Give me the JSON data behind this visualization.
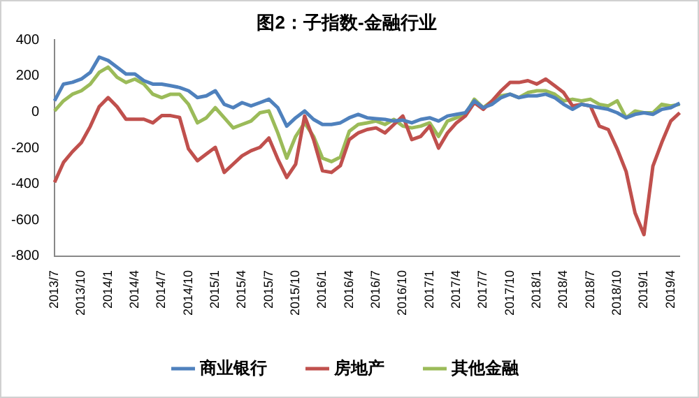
{
  "chart_data": {
    "type": "line",
    "title": "图2：子指数-金融行业",
    "categories": [
      "2013/7",
      null,
      null,
      "2013/10",
      null,
      null,
      "2014/1",
      null,
      null,
      "2014/4",
      null,
      null,
      "2014/7",
      null,
      null,
      "2014/10",
      null,
      null,
      "2015/1",
      null,
      null,
      "2015/4",
      null,
      null,
      "2015/7",
      null,
      null,
      "2015/10",
      null,
      null,
      "2016/1",
      null,
      null,
      "2016/4",
      null,
      null,
      "2016/7",
      null,
      null,
      "2016/10",
      null,
      null,
      "2017/1",
      null,
      null,
      "2017/4",
      null,
      null,
      "2017/7",
      null,
      null,
      "2017/10",
      null,
      null,
      "2018/1",
      null,
      null,
      "2018/4",
      null,
      null,
      "2018/7",
      null,
      null,
      "2018/10",
      null,
      null,
      "2019/1",
      null,
      null,
      "2019/4",
      null
    ],
    "series": [
      {
        "name": "商业银行",
        "color": "#4f81bd",
        "values": [
          62,
          155,
          165,
          183,
          220,
          305,
          286,
          249,
          211,
          211,
          174,
          155,
          155,
          146,
          136,
          118,
          80,
          90,
          118,
          43,
          24,
          52,
          34,
          52,
          71,
          24,
          -78,
          -32,
          6,
          -41,
          -69,
          -69,
          -60,
          -32,
          -13,
          -32,
          -37,
          -41,
          -50,
          -45,
          -60,
          -41,
          -32,
          -50,
          -22,
          -13,
          -4,
          62,
          24,
          43,
          80,
          99,
          80,
          90,
          90,
          99,
          80,
          43,
          15,
          43,
          34,
          24,
          15,
          -4,
          -32,
          -13,
          -4,
          -13,
          15,
          24,
          49
        ]
      },
      {
        "name": "房地产",
        "color": "#c0504d",
        "values": [
          -390,
          -280,
          -220,
          -170,
          -80,
          30,
          80,
          30,
          -40,
          -40,
          -40,
          -60,
          -20,
          -20,
          -30,
          -205,
          -270,
          -233,
          -196,
          -335,
          -289,
          -243,
          -215,
          -196,
          -144,
          -261,
          -363,
          -289,
          -22,
          -153,
          -326,
          -335,
          -298,
          -153,
          -116,
          -97,
          -88,
          -116,
          -69,
          -22,
          -153,
          -135,
          -78,
          -200,
          -116,
          -60,
          -22,
          52,
          15,
          62,
          118,
          164,
          164,
          174,
          155,
          183,
          146,
          108,
          34,
          43,
          34,
          -78,
          -97,
          -205,
          -330,
          -560,
          -680,
          -300,
          -168,
          -50,
          -4
        ]
      },
      {
        "name": "其他金融",
        "color": "#9bbb59",
        "values": [
          6,
          62,
          99,
          118,
          155,
          220,
          249,
          193,
          164,
          183,
          155,
          99,
          80,
          99,
          99,
          43,
          -60,
          -32,
          24,
          -32,
          -88,
          -69,
          -50,
          -4,
          6,
          -116,
          -256,
          -135,
          -60,
          -135,
          -256,
          -275,
          -250,
          -107,
          -69,
          -60,
          -50,
          -69,
          -41,
          -78,
          -88,
          -78,
          -60,
          -135,
          -50,
          -32,
          -13,
          71,
          24,
          62,
          90,
          99,
          80,
          108,
          118,
          118,
          99,
          62,
          71,
          62,
          71,
          43,
          34,
          62,
          -32,
          6,
          -4,
          -4,
          43,
          34,
          43
        ]
      }
    ],
    "ylim": [
      -800,
      400
    ],
    "yticks": [
      -800,
      -600,
      -400,
      -200,
      0,
      200,
      400
    ],
    "grid": false,
    "legend": "bottom",
    "marker": "none",
    "line_style": "solid"
  }
}
